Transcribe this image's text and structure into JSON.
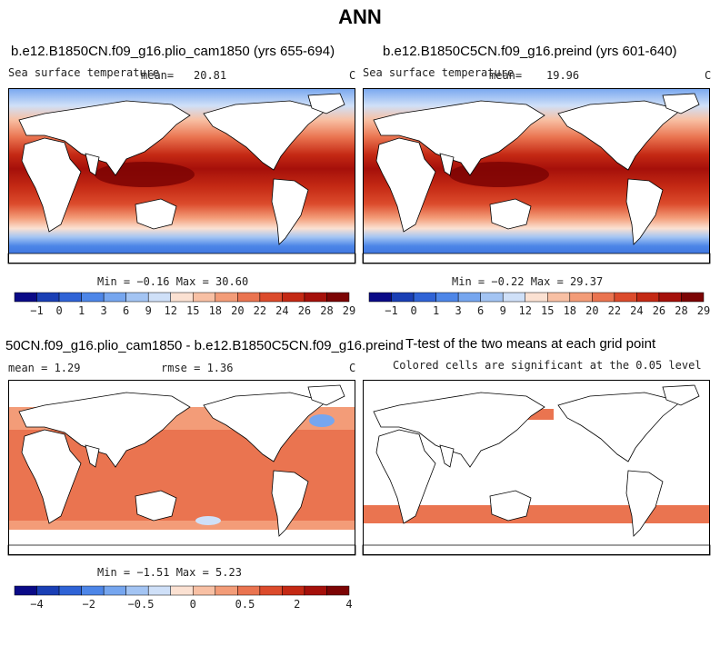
{
  "page": {
    "title": "ANN"
  },
  "panels": {
    "p1": {
      "title": "b.e12.B1850CN.f09_g16.plio_cam1850 (yrs 655-694)",
      "left_label": "Sea surface temperature",
      "mean_label": "mean=",
      "mean_value": "20.81",
      "units": "C",
      "minmax": "Min =  −0.16 Max =  30.60"
    },
    "p2": {
      "title": "b.e12.B1850C5CN.f09_g16.preind (yrs 601-640)",
      "left_label": "Sea surface temperature",
      "mean_label": "mean=",
      "mean_value": "19.96",
      "units": "C",
      "minmax": "Min =  −0.22 Max =  29.37"
    },
    "p3": {
      "title": "50CN.f09_g16.plio_cam1850 - b.e12.B1850C5CN.f09_g16.preind",
      "mean_text": "mean =    1.29",
      "rmse_text": "rmse =   1.36",
      "units": "C",
      "minmax": "Min =  −1.51 Max =   5.23"
    },
    "p4": {
      "title": "T-test of the two means at each grid point",
      "subtitle": "Colored cells are significant at the 0.05 level"
    }
  },
  "colorbars": {
    "sst": {
      "colors": [
        "#0a0a87",
        "#1a3fb5",
        "#2f63d6",
        "#4d86e8",
        "#76a6ef",
        "#a3c4f3",
        "#cfe0f8",
        "#fbe1d2",
        "#f8c0a4",
        "#f39c78",
        "#ea7450",
        "#dc4b2c",
        "#c42914",
        "#a5100a",
        "#7c0404"
      ],
      "labels": [
        "−1",
        "0",
        "1",
        "3",
        "6",
        "9",
        "12",
        "15",
        "18",
        "20",
        "22",
        "24",
        "26",
        "28",
        "29"
      ]
    },
    "diff": {
      "colors": [
        "#0a0a87",
        "#1a3fb5",
        "#2f63d6",
        "#4d86e8",
        "#76a6ef",
        "#a3c4f3",
        "#cfe0f8",
        "#fbe1d2",
        "#f8c0a4",
        "#f39c78",
        "#ea7450",
        "#dc4b2c",
        "#c42914",
        "#a5100a",
        "#7c0404"
      ],
      "labels": [
        "−4",
        "−2",
        "−0.5",
        "0",
        "0.5",
        "2",
        "4"
      ]
    }
  },
  "chart_data": [
    {
      "type": "heatmap",
      "title": "b.e12.B1850CN.f09_g16.plio_cam1850 (yrs 655-694)",
      "variable": "Sea surface temperature",
      "units": "C",
      "mean": 20.81,
      "min": -0.16,
      "max": 30.6,
      "contour_levels": [
        -1,
        0,
        1,
        3,
        6,
        9,
        12,
        15,
        18,
        20,
        22,
        24,
        26,
        28,
        29
      ]
    },
    {
      "type": "heatmap",
      "title": "b.e12.B1850C5CN.f09_g16.preind (yrs 601-640)",
      "variable": "Sea surface temperature",
      "units": "C",
      "mean": 19.96,
      "min": -0.22,
      "max": 29.37,
      "contour_levels": [
        -1,
        0,
        1,
        3,
        6,
        9,
        12,
        15,
        18,
        20,
        22,
        24,
        26,
        28,
        29
      ]
    },
    {
      "type": "heatmap",
      "title": "50CN.f09_g16.plio_cam1850 - b.e12.B1850C5CN.f09_g16.preind",
      "units": "C",
      "mean": 1.29,
      "rmse": 1.36,
      "min": -1.51,
      "max": 5.23,
      "contour_levels": [
        -4,
        -2,
        -0.5,
        0,
        0.5,
        2,
        4
      ]
    },
    {
      "type": "heatmap",
      "title": "T-test of the two means at each grid point",
      "subtitle": "Colored cells are significant at the 0.05 level"
    }
  ]
}
